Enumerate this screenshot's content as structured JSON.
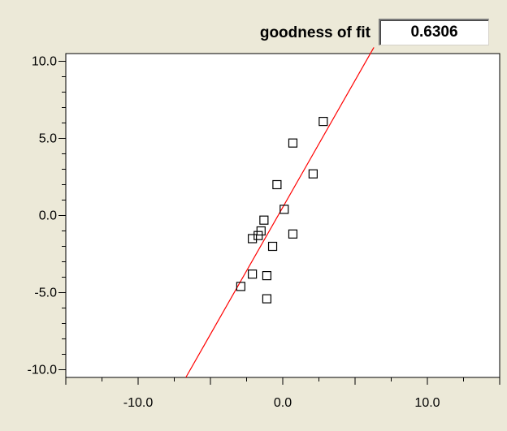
{
  "goodness": {
    "label": "goodness of fit",
    "value": "0.6306"
  },
  "chart_data": {
    "type": "scatter",
    "title": "",
    "xlabel": "",
    "ylabel": "",
    "xlim": [
      -15,
      15
    ],
    "ylim": [
      -10.5,
      10.5
    ],
    "x_ticks": [
      -10,
      0,
      10
    ],
    "x_tick_labels": [
      "-10.0",
      "0.0",
      "10.0"
    ],
    "y_ticks": [
      10,
      5,
      0,
      -5,
      -10
    ],
    "y_tick_labels": [
      "10.0",
      "5.0",
      "0.0",
      "-5.0",
      "-10.0"
    ],
    "grid": false,
    "points": [
      {
        "x": 2.8,
        "y": 6.1
      },
      {
        "x": 0.7,
        "y": 4.7
      },
      {
        "x": 2.1,
        "y": 2.7
      },
      {
        "x": -0.4,
        "y": 2.0
      },
      {
        "x": 0.1,
        "y": 0.4
      },
      {
        "x": -1.3,
        "y": -0.3
      },
      {
        "x": -1.5,
        "y": -1.0
      },
      {
        "x": -1.7,
        "y": -1.3
      },
      {
        "x": -2.1,
        "y": -1.5
      },
      {
        "x": 0.7,
        "y": -1.2
      },
      {
        "x": -0.7,
        "y": -2.0
      },
      {
        "x": -2.1,
        "y": -3.8
      },
      {
        "x": -1.1,
        "y": -3.9
      },
      {
        "x": -2.9,
        "y": -4.6
      },
      {
        "x": -1.1,
        "y": -5.4
      }
    ],
    "fit_line": {
      "x": [
        -6.7,
        6.3
      ],
      "y": [
        -10.5,
        10.9
      ]
    },
    "colors": {
      "points": "#000000",
      "fit_line": "#ff0000"
    }
  }
}
